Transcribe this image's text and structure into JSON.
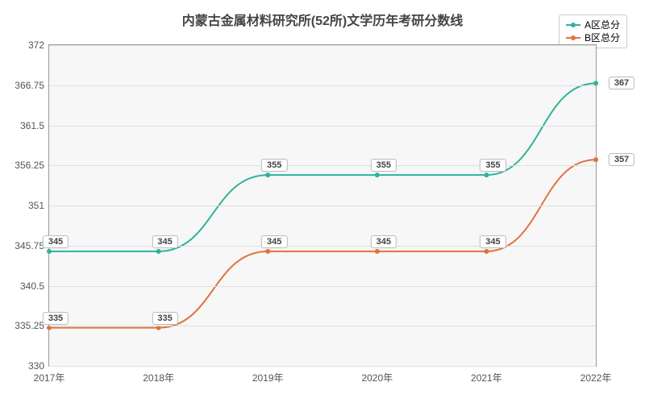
{
  "chart": {
    "type": "line",
    "title": "内蒙古金属材料研究所(52所)文学历年考研分数线",
    "title_fontsize": 16,
    "title_color": "#444444",
    "background_color": "#ffffff",
    "plot_background_color": "#f7f7f7",
    "border_color": "#999999",
    "grid_color": "#e0e0e0",
    "label_fontsize": 12,
    "pointlabel_fontsize": 11,
    "x": {
      "categories": [
        "2017年",
        "2018年",
        "2019年",
        "2020年",
        "2021年",
        "2022年"
      ],
      "lim": [
        0,
        5
      ]
    },
    "y": {
      "lim": [
        330,
        372
      ],
      "ticks": [
        330,
        335.25,
        340.5,
        345.75,
        351,
        356.25,
        361.5,
        366.75,
        372
      ]
    },
    "series": [
      {
        "name": "A区总分",
        "color": "#2eb39a",
        "line_width": 2,
        "marker_radius": 3,
        "values": [
          345,
          345,
          355,
          355,
          355,
          367
        ],
        "point_labels": [
          "345",
          "345",
          "355",
          "355",
          "355",
          "367"
        ]
      },
      {
        "name": "B区总分",
        "color": "#e0723c",
        "line_width": 2,
        "marker_radius": 3,
        "values": [
          335,
          335,
          345,
          345,
          345,
          357
        ],
        "point_labels": [
          "335",
          "335",
          "345",
          "345",
          "345",
          "357"
        ]
      }
    ],
    "legend": {
      "position": "top-right"
    }
  }
}
